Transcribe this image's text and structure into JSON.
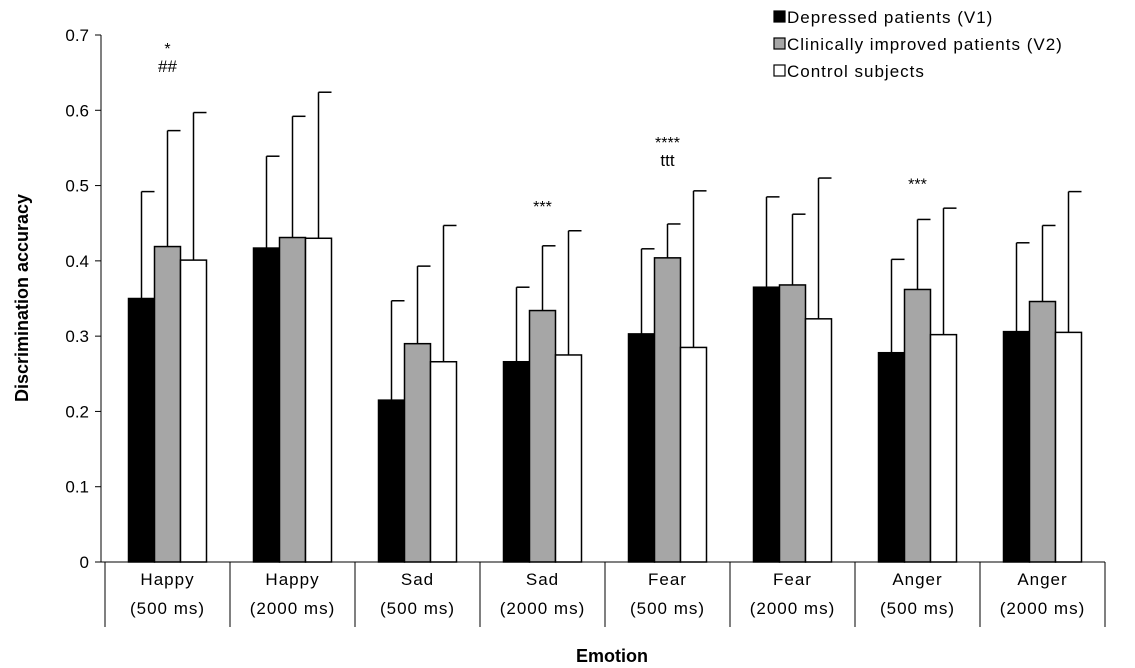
{
  "chart_data": {
    "type": "bar",
    "title": "",
    "xlabel": "Emotion",
    "ylabel": "Discrimination accuracy",
    "ylim": [
      0,
      0.7
    ],
    "yticks": [
      "0",
      "0.1",
      "0.2",
      "0.3",
      "0.4",
      "0.5",
      "0.6",
      "0.7"
    ],
    "grid": false,
    "legend_position": "top-right",
    "categories": [
      {
        "line1": "Happy",
        "line2": "(500 ms)"
      },
      {
        "line1": "Happy",
        "line2": "(2000 ms)"
      },
      {
        "line1": "Sad",
        "line2": "(500 ms)"
      },
      {
        "line1": "Sad",
        "line2": "(2000 ms)"
      },
      {
        "line1": "Fear",
        "line2": "(500 ms)"
      },
      {
        "line1": "Fear",
        "line2": "(2000 ms)"
      },
      {
        "line1": "Anger",
        "line2": "(500 ms)"
      },
      {
        "line1": "Anger",
        "line2": "(2000 ms)"
      }
    ],
    "series": [
      {
        "name": "Depressed patients (V1)",
        "color": "#000000",
        "values": [
          0.35,
          0.417,
          0.215,
          0.266,
          0.303,
          0.365,
          0.278,
          0.306
        ],
        "error_upper": [
          0.492,
          0.539,
          0.347,
          0.365,
          0.416,
          0.485,
          0.402,
          0.424
        ]
      },
      {
        "name": "Clinically improved patients (V2)",
        "color": "#a6a6a6",
        "values": [
          0.419,
          0.431,
          0.29,
          0.334,
          0.404,
          0.368,
          0.362,
          0.346
        ],
        "error_upper": [
          0.573,
          0.592,
          0.393,
          0.42,
          0.449,
          0.462,
          0.455,
          0.447
        ]
      },
      {
        "name": "Control subjects",
        "color": "#ffffff",
        "values": [
          0.401,
          0.43,
          0.266,
          0.275,
          0.285,
          0.323,
          0.302,
          0.305
        ],
        "error_upper": [
          0.597,
          0.624,
          0.447,
          0.44,
          0.493,
          0.51,
          0.47,
          0.492
        ]
      }
    ],
    "annotations": [
      {
        "category": 0,
        "lines": [
          "*",
          "##"
        ],
        "y": 0.68
      },
      {
        "category": 3,
        "lines": [
          "***"
        ],
        "y": 0.47
      },
      {
        "category": 4,
        "lines": [
          "****",
          "ttt"
        ],
        "y": 0.555
      },
      {
        "category": 6,
        "lines": [
          "***"
        ],
        "y": 0.5
      }
    ]
  }
}
